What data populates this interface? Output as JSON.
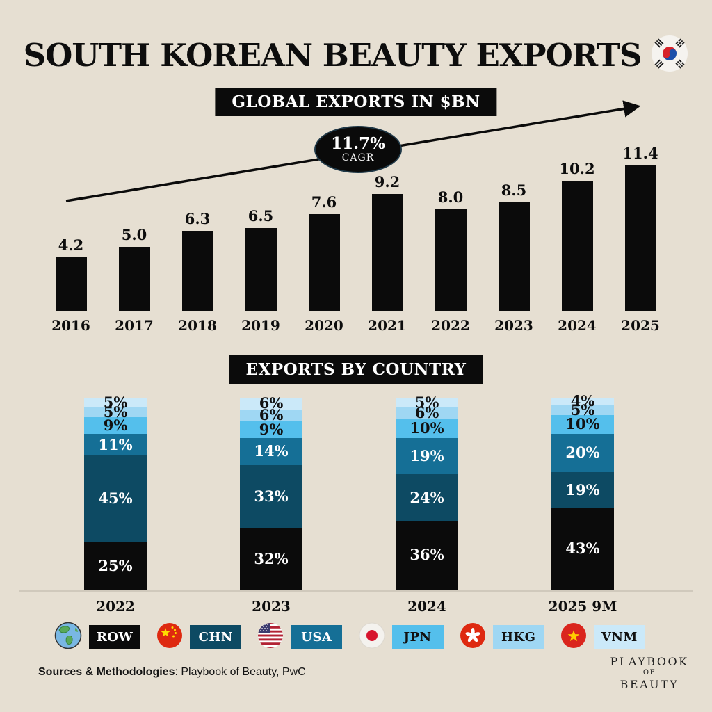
{
  "header": {
    "title": "SOUTH KOREAN BEAUTY EXPORTS"
  },
  "banners": {
    "global_exports": "GLOBAL EXPORTS IN $BN",
    "by_country": "EXPORTS BY COUNTRY"
  },
  "cagr": {
    "value": "11.7%",
    "label": "CAGR"
  },
  "legend": {
    "items": [
      {
        "code": "ROW",
        "icon": "globe-americas-icon",
        "chip_bg": "#0b0b0b",
        "chip_text": "#ffffff"
      },
      {
        "code": "CHN",
        "icon": "china-flag-icon",
        "chip_bg": "#0d4a63",
        "chip_text": "#ffffff"
      },
      {
        "code": "USA",
        "icon": "usa-flag-icon",
        "chip_bg": "#156f96",
        "chip_text": "#ffffff"
      },
      {
        "code": "JPN",
        "icon": "japan-flag-icon",
        "chip_bg": "#54bfec",
        "chip_text": "#111111"
      },
      {
        "code": "HKG",
        "icon": "hongkong-flag-icon",
        "chip_bg": "#9fd7f3",
        "chip_text": "#111111"
      },
      {
        "code": "VNM",
        "icon": "vietnam-flag-icon",
        "chip_bg": "#cbe9f9",
        "chip_text": "#111111"
      }
    ]
  },
  "footer": {
    "label_bold": "Sources & Methodologies",
    "label_rest": ": Playbook of Beauty, PwC"
  },
  "logo": {
    "line1": "PLAYBOOK",
    "line2": "OF",
    "line3": "BEAUTY"
  },
  "chart_data": [
    {
      "type": "bar",
      "title": "GLOBAL EXPORTS IN $BN",
      "unit": "$bn",
      "categories": [
        "2016",
        "2017",
        "2018",
        "2019",
        "2020",
        "2021",
        "2022",
        "2023",
        "2024",
        "2025"
      ],
      "values": [
        4.2,
        5.0,
        6.3,
        6.5,
        7.6,
        9.2,
        8.0,
        8.5,
        10.2,
        11.4
      ],
      "value_labels": [
        "4.2",
        "5.0",
        "6.3",
        "6.5",
        "7.6",
        "9.2",
        "8.0",
        "8.5",
        "10.2",
        "11.4"
      ],
      "bar_color": "#0b0b0b",
      "annotation": "11.7% CAGR",
      "ylim": [
        0,
        12
      ],
      "grid": false,
      "legend_position": "none"
    },
    {
      "type": "bar",
      "stacked": true,
      "title": "EXPORTS BY COUNTRY",
      "unit": "%",
      "categories": [
        "2022",
        "2023",
        "2024",
        "2025 9M"
      ],
      "series": [
        {
          "name": "ROW",
          "color": "#0b0b0b",
          "label_color": "#ffffff",
          "values": [
            25,
            32,
            36,
            43
          ]
        },
        {
          "name": "CHN",
          "color": "#0d4a63",
          "label_color": "#ffffff",
          "values": [
            45,
            33,
            24,
            19
          ]
        },
        {
          "name": "USA",
          "color": "#156f96",
          "label_color": "#ffffff",
          "values": [
            11,
            14,
            19,
            20
          ]
        },
        {
          "name": "JPN",
          "color": "#54bfec",
          "label_color": "#111111",
          "values": [
            9,
            9,
            10,
            10
          ]
        },
        {
          "name": "HKG",
          "color": "#9fd7f3",
          "label_color": "#111111",
          "values": [
            5,
            6,
            6,
            5
          ]
        },
        {
          "name": "VNM",
          "color": "#cbe9f9",
          "label_color": "#111111",
          "values": [
            5,
            6,
            5,
            4
          ]
        }
      ],
      "ylim": [
        0,
        100
      ],
      "grid": false,
      "legend_position": "bottom"
    }
  ]
}
